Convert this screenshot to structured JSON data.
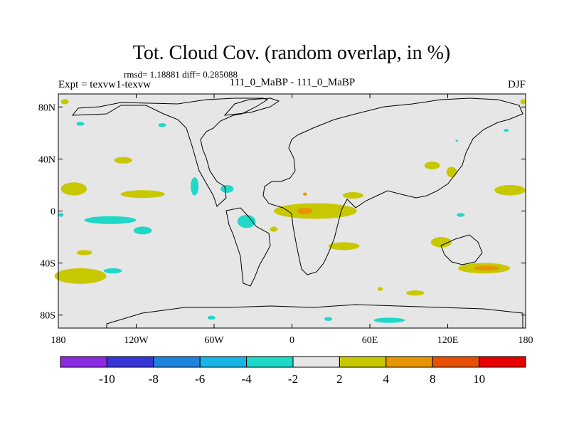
{
  "chart_data": {
    "type": "heatmap",
    "title": "Tot. Cloud Cov. (random overlap, in %)",
    "stats": "rmsd= 1.18881 diff= 0.285088",
    "experiment": "Expt = texvw1-texvw",
    "period": "111_0_MaBP - 111_0_MaBP",
    "season": "DJF",
    "xlim": [
      -180,
      180
    ],
    "ylim": [
      -90,
      90
    ],
    "x_ticks": [
      {
        "value": -180,
        "label": "180"
      },
      {
        "value": -120,
        "label": "120W"
      },
      {
        "value": -60,
        "label": "60W"
      },
      {
        "value": 0,
        "label": "0"
      },
      {
        "value": 60,
        "label": "60E"
      },
      {
        "value": 120,
        "label": "120E"
      },
      {
        "value": 180,
        "label": "180"
      }
    ],
    "y_ticks": [
      {
        "value": 80,
        "label": "80N"
      },
      {
        "value": 40,
        "label": "40N"
      },
      {
        "value": 0,
        "label": "0"
      },
      {
        "value": -40,
        "label": "40S"
      },
      {
        "value": -80,
        "label": "80S"
      }
    ],
    "colorbar": {
      "colors": [
        "#8a2be2",
        "#3636d6",
        "#1f82dc",
        "#17b4e6",
        "#1ed8c8",
        "#e6e6e6",
        "#c8c800",
        "#e69600",
        "#e65000",
        "#e60000"
      ],
      "labels": [
        "-10",
        "-8",
        "-6",
        "-4",
        "-2",
        "2",
        "4",
        "8",
        "10"
      ]
    },
    "background_color": "#e6e6e6",
    "regions": [
      {
        "level": "2 to 4",
        "color": "#c8c800",
        "lon": 18,
        "lat": 0,
        "rx": 32,
        "ry": 6
      },
      {
        "level": "4 to 8",
        "color": "#e69600",
        "lon": 10,
        "lat": 0,
        "rx": 6,
        "ry": 2.5
      },
      {
        "level": "4 to 8",
        "color": "#e69600",
        "lon": 10,
        "lat": 13,
        "rx": 1.5,
        "ry": 1.2
      },
      {
        "level": "2 to 4",
        "color": "#c8c800",
        "lon": -115,
        "lat": 13,
        "rx": 17,
        "ry": 3
      },
      {
        "level": "2 to 4",
        "color": "#c8c800",
        "lon": -168,
        "lat": 17,
        "rx": 10,
        "ry": 5
      },
      {
        "level": "2 to 4",
        "color": "#c8c800",
        "lon": -130,
        "lat": 39,
        "rx": 7,
        "ry": 2.5
      },
      {
        "level": "2 to 4",
        "color": "#c8c800",
        "lon": -175,
        "lat": 84,
        "rx": 3,
        "ry": 2
      },
      {
        "level": "2 to 4",
        "color": "#c8c800",
        "lon": 47,
        "lat": 12,
        "rx": 8,
        "ry": 2.5
      },
      {
        "level": "2 to 4",
        "color": "#c8c800",
        "lon": 108,
        "lat": 35,
        "rx": 6,
        "ry": 3
      },
      {
        "level": "2 to 4",
        "color": "#c8c800",
        "lon": 123,
        "lat": 30,
        "rx": 4,
        "ry": 4
      },
      {
        "level": "2 to 4",
        "color": "#c8c800",
        "lon": 168,
        "lat": 16,
        "rx": 12,
        "ry": 4
      },
      {
        "level": "2 to 4",
        "color": "#c8c800",
        "lon": 178,
        "lat": 84,
        "rx": 2,
        "ry": 2
      },
      {
        "level": "2 to 4",
        "color": "#c8c800",
        "lon": -14,
        "lat": -14,
        "rx": 3,
        "ry": 2
      },
      {
        "level": "2 to 4",
        "color": "#c8c800",
        "lon": 40,
        "lat": -27,
        "rx": 12,
        "ry": 3
      },
      {
        "level": "2 to 4",
        "color": "#c8c800",
        "lon": 115,
        "lat": -24,
        "rx": 8,
        "ry": 4
      },
      {
        "level": "2 to 4",
        "color": "#c8c800",
        "lon": -163,
        "lat": -50,
        "rx": 20,
        "ry": 6
      },
      {
        "level": "2 to 4",
        "color": "#c8c800",
        "lon": -160,
        "lat": -32,
        "rx": 6,
        "ry": 2
      },
      {
        "level": "2 to 4",
        "color": "#c8c800",
        "lon": 148,
        "lat": -44,
        "rx": 20,
        "ry": 4
      },
      {
        "level": "4 to 8",
        "color": "#e69600",
        "lon": 150,
        "lat": -44,
        "rx": 10,
        "ry": 1.8
      },
      {
        "level": "2 to 4",
        "color": "#c8c800",
        "lon": 95,
        "lat": -63,
        "rx": 7,
        "ry": 2
      },
      {
        "level": "2 to 4",
        "color": "#c8c800",
        "lon": 68,
        "lat": -60,
        "rx": 2,
        "ry": 1.5
      },
      {
        "level": "-4 to -2",
        "color": "#1ed8c8",
        "lon": -140,
        "lat": -7,
        "rx": 20,
        "ry": 3
      },
      {
        "level": "-4 to -2",
        "color": "#1ed8c8",
        "lon": -115,
        "lat": -15,
        "rx": 7,
        "ry": 3
      },
      {
        "level": "-4 to -2",
        "color": "#1ed8c8",
        "lon": -138,
        "lat": -46,
        "rx": 7,
        "ry": 2
      },
      {
        "level": "-4 to -2",
        "color": "#1ed8c8",
        "lon": -75,
        "lat": 19,
        "rx": 3,
        "ry": 7
      },
      {
        "level": "-4 to -2",
        "color": "#1ed8c8",
        "lon": -50,
        "lat": 17,
        "rx": 5,
        "ry": 3
      },
      {
        "level": "-4 to -2",
        "color": "#1ed8c8",
        "lon": -35,
        "lat": -8,
        "rx": 7,
        "ry": 5
      },
      {
        "level": "-4 to -2",
        "color": "#1ed8c8",
        "lon": -100,
        "lat": 66,
        "rx": 3,
        "ry": 1.5
      },
      {
        "level": "-4 to -2",
        "color": "#1ed8c8",
        "lon": -163,
        "lat": 67,
        "rx": 3,
        "ry": 1.5
      },
      {
        "level": "-4 to -2",
        "color": "#1ed8c8",
        "lon": -178,
        "lat": -3,
        "rx": 2,
        "ry": 1.5
      },
      {
        "level": "-4 to -2",
        "color": "#1ed8c8",
        "lon": 130,
        "lat": -3,
        "rx": 3,
        "ry": 1.5
      },
      {
        "level": "-4 to -2",
        "color": "#1ed8c8",
        "lon": 165,
        "lat": 62,
        "rx": 2,
        "ry": 1
      },
      {
        "level": "-4 to -2",
        "color": "#1ed8c8",
        "lon": 127,
        "lat": 54,
        "rx": 1,
        "ry": 0.8
      },
      {
        "level": "-4 to -2",
        "color": "#1ed8c8",
        "lon": 75,
        "lat": -84,
        "rx": 12,
        "ry": 2
      },
      {
        "level": "-4 to -2",
        "color": "#1ed8c8",
        "lon": 28,
        "lat": -83,
        "rx": 3,
        "ry": 1.5
      },
      {
        "level": "-4 to -2",
        "color": "#1ed8c8",
        "lon": -62,
        "lat": -82,
        "rx": 3,
        "ry": 1.5
      }
    ]
  }
}
